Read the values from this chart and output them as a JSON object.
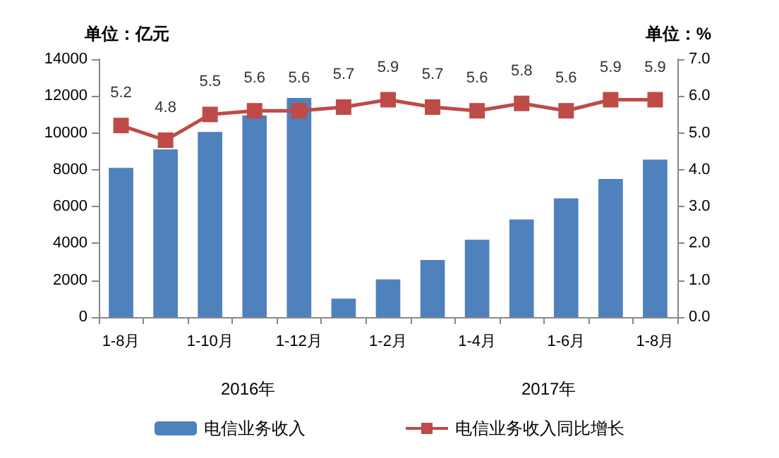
{
  "chart_data": {
    "type": "bar",
    "ylabel": "单位：亿元",
    "y2label": "单位：%",
    "categories": [
      "1-8月",
      null,
      "1-10月",
      null,
      "1-12月",
      null,
      "1-2月",
      null,
      "1-4月",
      null,
      "1-6月",
      null,
      "1-8月"
    ],
    "series": [
      {
        "name": "电信业务收入",
        "color": "#4f81bd",
        "values": [
          8100,
          9100,
          10050,
          10950,
          11900,
          1000,
          2050,
          3100,
          4200,
          5300,
          6450,
          7500,
          8550
        ]
      },
      {
        "name": "电信业务收入同比增长",
        "type": "line",
        "axis": "y2",
        "color": "#be4b48",
        "marker": "square",
        "values": [
          5.2,
          4.8,
          5.5,
          5.6,
          5.6,
          5.7,
          5.9,
          5.7,
          5.6,
          5.8,
          5.6,
          5.9,
          5.9
        ],
        "value_labels": [
          "5.2",
          "4.8",
          "5.5",
          "5.6",
          "5.6",
          "5.7",
          "5.9",
          "5.7",
          "5.6",
          "5.8",
          "5.6",
          "5.9",
          "5.9"
        ]
      }
    ],
    "ylim": [
      0,
      14000
    ],
    "yticks": [
      0,
      2000,
      4000,
      6000,
      8000,
      10000,
      12000,
      14000
    ],
    "y2lim": [
      0,
      7
    ],
    "y2ticks": [
      {
        "value": 0,
        "label": "0.0"
      },
      {
        "value": 1,
        "label": "1.0"
      },
      {
        "value": 2,
        "label": "2.0"
      },
      {
        "value": 3,
        "label": "3.0"
      },
      {
        "value": 4,
        "label": "4.0"
      },
      {
        "value": 5,
        "label": "5.0"
      },
      {
        "value": 6,
        "label": "6.0"
      },
      {
        "value": 7,
        "label": "7.0"
      }
    ],
    "annotations": [
      "2016年",
      "2017年"
    ],
    "grid": false,
    "legend": "bottom"
  }
}
